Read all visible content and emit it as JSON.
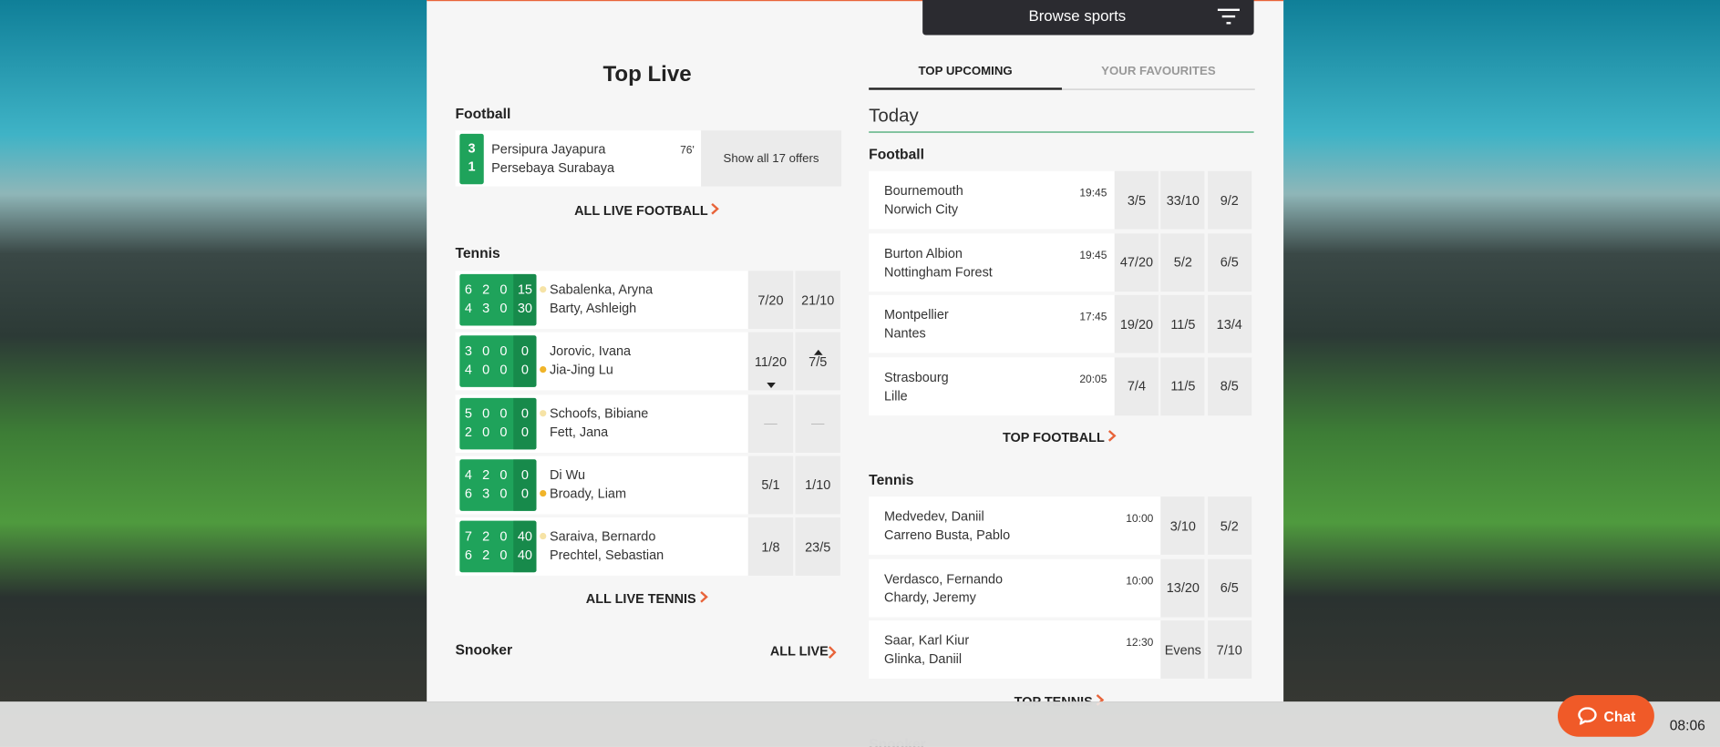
{
  "header": {
    "browse": "Browse sports"
  },
  "top_live": {
    "title": "Top Live",
    "football": {
      "label": "Football",
      "match": {
        "score": [
          3,
          1
        ],
        "home": "Persipura Jayapura",
        "away": "Persebaya Surabaya",
        "minute": "76'",
        "offers": "Show all 17 offers"
      },
      "link": "ALL LIVE FOOTBALL"
    },
    "tennis": {
      "label": "Tennis",
      "link": "ALL LIVE TENNIS",
      "matches": [
        {
          "p1": "Sabalenka, Aryna",
          "p2": "Barty, Ashleigh",
          "s1": [
            6,
            2,
            0,
            15
          ],
          "s2": [
            4,
            3,
            0,
            30
          ],
          "odds": [
            "7/20",
            "21/10"
          ],
          "server": 0,
          "server_live": false
        },
        {
          "p1": "Jorovic, Ivana",
          "p2": "Jia-Jing Lu",
          "s1": [
            3,
            0,
            0,
            0
          ],
          "s2": [
            4,
            0,
            0,
            0
          ],
          "odds": [
            "11/20",
            "7/5"
          ],
          "server": 1,
          "server_live": true,
          "trend": [
            "down",
            "up"
          ]
        },
        {
          "p1": "Schoofs, Bibiane",
          "p2": "Fett, Jana",
          "s1": [
            5,
            0,
            0,
            0
          ],
          "s2": [
            2,
            0,
            0,
            0
          ],
          "odds": [
            "—",
            "—"
          ],
          "server": 0,
          "server_live": false
        },
        {
          "p1": "Di Wu",
          "p2": "Broady, Liam",
          "s1": [
            4,
            2,
            0,
            0
          ],
          "s2": [
            6,
            3,
            0,
            0
          ],
          "odds": [
            "5/1",
            "1/10"
          ],
          "server": 1,
          "server_live": true
        },
        {
          "p1": "Saraiva, Bernardo",
          "p2": "Prechtel, Sebastian",
          "s1": [
            7,
            2,
            0,
            40
          ],
          "s2": [
            6,
            2,
            0,
            40
          ],
          "odds": [
            "1/8",
            "23/5"
          ],
          "server": 0,
          "server_live": false
        }
      ]
    },
    "snooker": {
      "label": "Snooker",
      "link": "ALL LIVE"
    }
  },
  "upcoming": {
    "tabs": [
      "TOP UPCOMING",
      "YOUR FAVOURITES"
    ],
    "active_tab": 0,
    "day": "Today",
    "football": {
      "label": "Football",
      "link": "TOP FOOTBALL",
      "matches": [
        {
          "home": "Bournemouth",
          "away": "Norwich City",
          "time": "19:45",
          "odds": [
            "3/5",
            "33/10",
            "9/2"
          ]
        },
        {
          "home": "Burton Albion",
          "away": "Nottingham Forest",
          "time": "19:45",
          "odds": [
            "47/20",
            "5/2",
            "6/5"
          ]
        },
        {
          "home": "Montpellier",
          "away": "Nantes",
          "time": "17:45",
          "odds": [
            "19/20",
            "11/5",
            "13/4"
          ]
        },
        {
          "home": "Strasbourg",
          "away": "Lille",
          "time": "20:05",
          "odds": [
            "7/4",
            "11/5",
            "8/5"
          ]
        }
      ]
    },
    "tennis": {
      "label": "Tennis",
      "link": "TOP TENNIS",
      "matches": [
        {
          "home": "Medvedev, Daniil",
          "away": "Carreno Busta, Pablo",
          "time": "10:00",
          "odds": [
            "3/10",
            "5/2"
          ]
        },
        {
          "home": "Verdasco, Fernando",
          "away": "Chardy, Jeremy",
          "time": "10:00",
          "odds": [
            "13/20",
            "6/5"
          ]
        },
        {
          "home": "Saar, Karl Kiur",
          "away": "Glinka, Daniil",
          "time": "12:30",
          "odds": [
            "Evens",
            "7/10"
          ]
        }
      ]
    },
    "next": "Snooker"
  },
  "footer": {
    "chat": "Chat",
    "clock": "08:06"
  }
}
